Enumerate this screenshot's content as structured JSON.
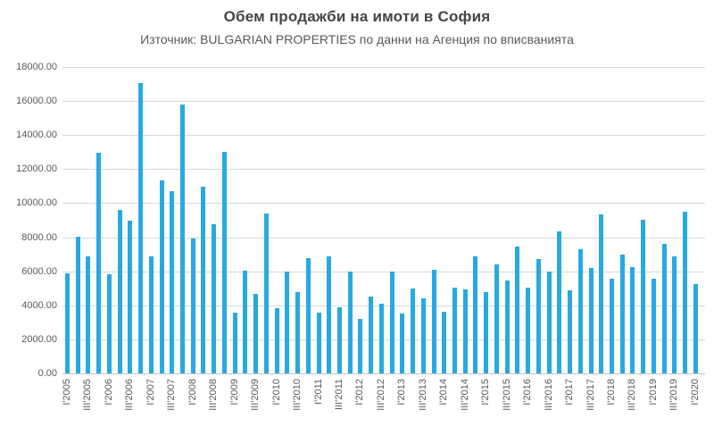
{
  "chart_data": {
    "type": "bar",
    "title": "Обем продажби на имоти в София",
    "subtitle": "Източник: BULGARIAN PROPERTIES по данни на Агенция по вписванията",
    "xlabel": "",
    "ylabel": "",
    "ylim": [
      0,
      18000
    ],
    "y_tick_step": 2000,
    "y_tick_labels": [
      "0.00",
      "2000.00",
      "4000.00",
      "6000.00",
      "8000.00",
      "10000.00",
      "12000.00",
      "14000.00",
      "16000.00",
      "18000.00"
    ],
    "x_label_every": 2,
    "grid": true,
    "legend_position": "none",
    "bar_color": "#27a9e1",
    "grid_color": "#d9d9d9",
    "text_color": "#595959",
    "title_color": "#454545",
    "categories": [
      "I'2005",
      "II'2005",
      "III'2005",
      "IV'2005",
      "I'2006",
      "II'2006",
      "III'2006",
      "IV'2006",
      "I'2007",
      "II'2007",
      "III'2007",
      "IV'2007",
      "I'2008",
      "II'2008",
      "III'2008",
      "IV'2008",
      "I'2009",
      "II'2009",
      "III'2009",
      "IV'2009",
      "I'2010",
      "II'2010",
      "III'2010",
      "IV'2010",
      "I'2011",
      "II'2011",
      "III'2011",
      "IV'2011",
      "I'2012",
      "II'2012",
      "III'2012",
      "IV'2012",
      "I'2013",
      "II'2013",
      "III'2013",
      "IV'2013",
      "I'2014",
      "II'2014",
      "III'2014",
      "IV'2014",
      "I'2015",
      "II'2015",
      "III'2015",
      "IV'2015",
      "I'2016",
      "II'2016",
      "III'2016",
      "IV'2016",
      "I'2017",
      "II'2017",
      "III'2017",
      "IV'2017",
      "I'2018",
      "II'2018",
      "III'2018",
      "IV'2018",
      "I'2019",
      "II'2019",
      "III'2019",
      "IV'2019",
      "I'2020"
    ],
    "values": [
      5900,
      8050,
      6900,
      12950,
      5800,
      9600,
      8950,
      17050,
      6900,
      11350,
      10700,
      15800,
      7950,
      10950,
      8750,
      13000,
      3550,
      6050,
      4650,
      9400,
      3850,
      6000,
      4800,
      6750,
      3550,
      6850,
      3900,
      6000,
      3200,
      4500,
      4100,
      6000,
      3500,
      5000,
      4400,
      6100,
      3600,
      5050,
      4950,
      6900,
      4750,
      6400,
      5450,
      7450,
      5050,
      6700,
      6000,
      8350,
      4900,
      7300,
      6200,
      9350,
      5550,
      7000,
      6250,
      9050,
      5550,
      7600,
      6850,
      9500,
      5250
    ]
  }
}
